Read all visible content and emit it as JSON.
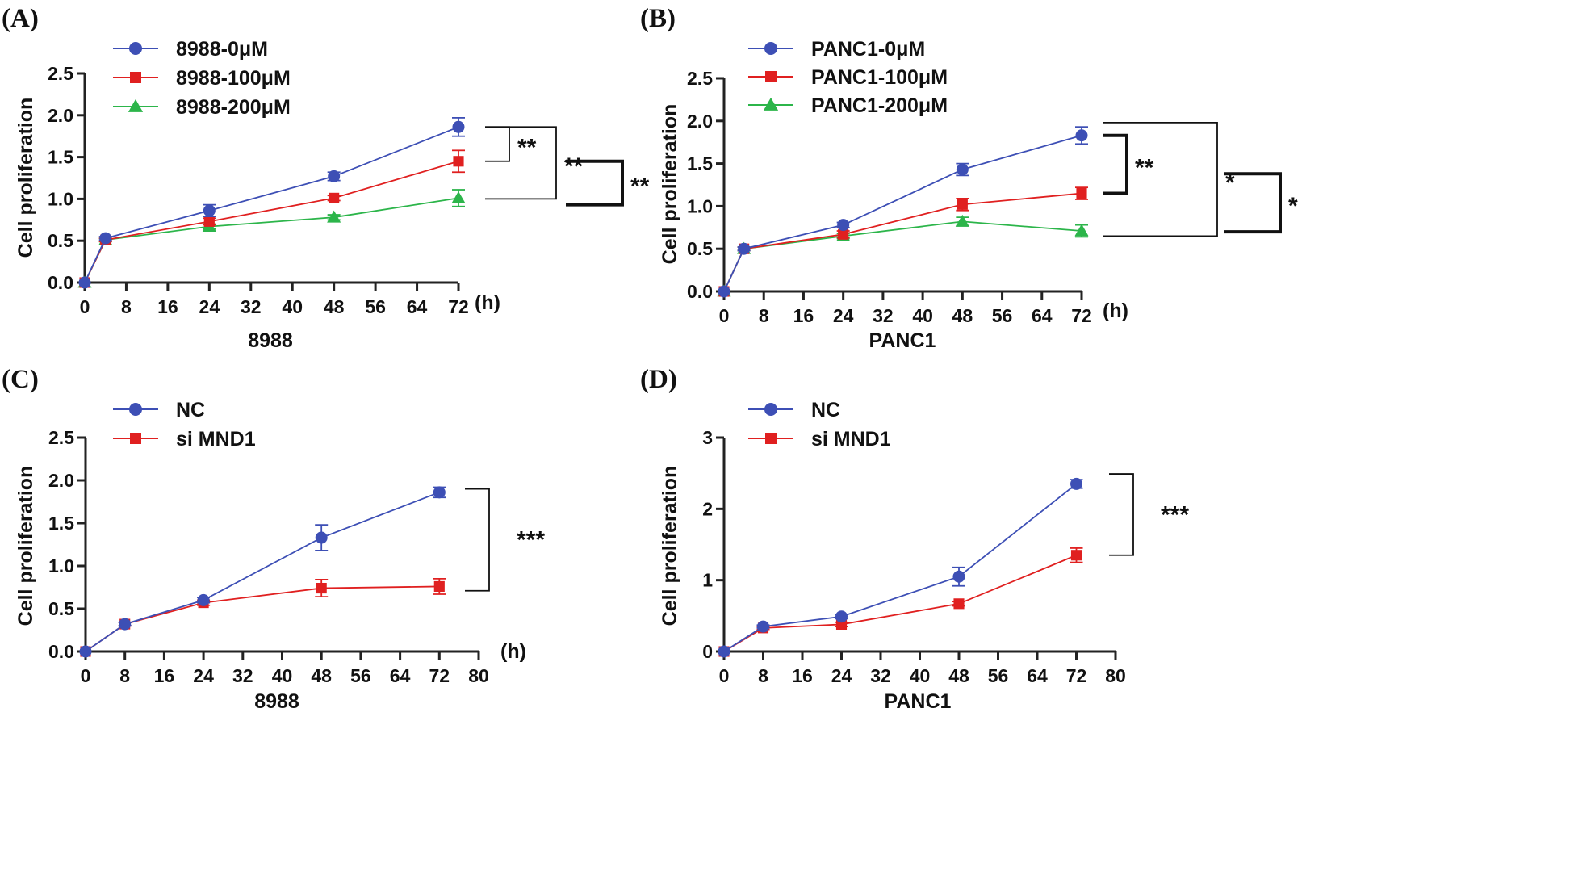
{
  "chart_data": [
    {
      "type": "line",
      "panel": "(A)",
      "xlabel": "8988",
      "x_unit": "(h)",
      "ylabel": "Cell proliferation",
      "xlim": [
        0,
        72
      ],
      "ylim": [
        0,
        2.5
      ],
      "x_ticks": [
        0,
        8,
        16,
        24,
        32,
        40,
        48,
        56,
        64,
        72
      ],
      "y_ticks": [
        "0.0",
        "0.5",
        "1.0",
        "1.5",
        "2.0",
        "2.5"
      ],
      "x": [
        0,
        4,
        24,
        48,
        72
      ],
      "series": [
        {
          "name": "8988-0μM",
          "color": "#3d4fb5",
          "marker": "circle",
          "values": [
            0,
            0.53,
            0.86,
            1.27,
            1.86
          ],
          "errors": [
            0,
            0.02,
            0.07,
            0.05,
            0.11
          ]
        },
        {
          "name": "8988-100μM",
          "color": "#e02020",
          "marker": "square",
          "values": [
            0,
            0.51,
            0.73,
            1.01,
            1.45
          ],
          "errors": [
            0,
            0.02,
            0.04,
            0.03,
            0.13
          ]
        },
        {
          "name": "8988-200μM",
          "color": "#2cb54a",
          "marker": "triangle",
          "values": [
            0,
            0.51,
            0.67,
            0.78,
            1.01
          ],
          "errors": [
            0,
            0.02,
            0.03,
            0.03,
            0.1
          ]
        }
      ],
      "significance": [
        {
          "label": "**",
          "from": 1.86,
          "to": 1.45,
          "level": 1,
          "weight": "thin"
        },
        {
          "label": "**",
          "from": 1.86,
          "to": 1.0,
          "level": 2,
          "weight": "thin"
        },
        {
          "label": "**",
          "from": 1.45,
          "to": 0.93,
          "level": 3,
          "weight": "bold"
        }
      ]
    },
    {
      "type": "line",
      "panel": "(B)",
      "xlabel": "PANC1",
      "x_unit": "(h)",
      "ylabel": "Cell proliferation",
      "xlim": [
        0,
        72
      ],
      "ylim": [
        0,
        2.5
      ],
      "x_ticks": [
        0,
        8,
        16,
        24,
        32,
        40,
        48,
        56,
        64,
        72
      ],
      "y_ticks": [
        "0.0",
        "0.5",
        "1.0",
        "1.5",
        "2.0",
        "2.5"
      ],
      "x": [
        0,
        4,
        24,
        48,
        72
      ],
      "series": [
        {
          "name": "PANC1-0μM",
          "color": "#3d4fb5",
          "marker": "circle",
          "values": [
            0,
            0.5,
            0.78,
            1.43,
            1.83
          ],
          "errors": [
            0,
            0.02,
            0.03,
            0.07,
            0.1
          ]
        },
        {
          "name": "PANC1-100μM",
          "color": "#e02020",
          "marker": "square",
          "values": [
            0,
            0.5,
            0.67,
            1.02,
            1.15
          ],
          "errors": [
            0,
            0.02,
            0.04,
            0.07,
            0.07
          ]
        },
        {
          "name": "PANC1-200μM",
          "color": "#2cb54a",
          "marker": "triangle",
          "values": [
            0,
            0.5,
            0.65,
            0.82,
            0.71
          ],
          "errors": [
            0,
            0.02,
            0.03,
            0.05,
            0.07
          ]
        }
      ],
      "significance": [
        {
          "label": "**",
          "from": 1.83,
          "to": 1.15,
          "level": 1,
          "weight": "bold"
        },
        {
          "label": "*",
          "from": 1.98,
          "to": 0.65,
          "level": 2,
          "weight": "thin"
        },
        {
          "label": "*",
          "from": 1.38,
          "to": 0.7,
          "level": 3,
          "weight": "bold"
        }
      ]
    },
    {
      "type": "line",
      "panel": "(C)",
      "xlabel": "8988",
      "x_unit": "(h)",
      "ylabel": "Cell proliferation",
      "xlim": [
        0,
        80
      ],
      "ylim": [
        0,
        2.5
      ],
      "x_ticks": [
        0,
        8,
        16,
        24,
        32,
        40,
        48,
        56,
        64,
        72,
        80
      ],
      "y_ticks": [
        "0.0",
        "0.5",
        "1.0",
        "1.5",
        "2.0",
        "2.5"
      ],
      "x": [
        0,
        8,
        24,
        48,
        72
      ],
      "series": [
        {
          "name": "NC",
          "color": "#3d4fb5",
          "marker": "circle",
          "values": [
            0,
            0.32,
            0.6,
            1.33,
            1.86
          ],
          "errors": [
            0,
            0.02,
            0.03,
            0.15,
            0.06
          ]
        },
        {
          "name": "si MND1",
          "color": "#e02020",
          "marker": "square",
          "values": [
            0,
            0.32,
            0.57,
            0.74,
            0.76
          ],
          "errors": [
            0,
            0.02,
            0.03,
            0.1,
            0.09
          ]
        }
      ],
      "significance": [
        {
          "label": "***",
          "from": 1.9,
          "to": 0.71,
          "level": 1,
          "weight": "thin"
        }
      ]
    },
    {
      "type": "line",
      "panel": "(D)",
      "xlabel": "PANC1",
      "ylabel": "Cell proliferation",
      "xlim": [
        0,
        80
      ],
      "ylim": [
        0,
        3
      ],
      "x_ticks": [
        0,
        8,
        16,
        24,
        32,
        40,
        48,
        56,
        64,
        72,
        80
      ],
      "y_ticks": [
        "0",
        "1",
        "2",
        "3"
      ],
      "x": [
        0,
        8,
        24,
        48,
        72
      ],
      "series": [
        {
          "name": "NC",
          "color": "#3d4fb5",
          "marker": "circle",
          "values": [
            0,
            0.35,
            0.49,
            1.05,
            2.35
          ],
          "errors": [
            0,
            0.02,
            0.03,
            0.13,
            0.06
          ]
        },
        {
          "name": "si MND1",
          "color": "#e02020",
          "marker": "square",
          "values": [
            0,
            0.33,
            0.38,
            0.67,
            1.35
          ],
          "errors": [
            0,
            0.02,
            0.03,
            0.03,
            0.1
          ]
        }
      ],
      "significance": [
        {
          "label": "***",
          "from": 2.49,
          "to": 1.35,
          "level": 1,
          "weight": "thin"
        }
      ]
    }
  ]
}
